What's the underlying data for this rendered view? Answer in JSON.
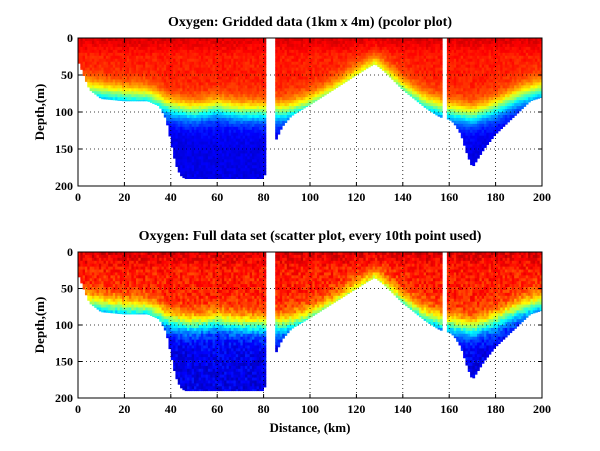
{
  "colors": {
    "colormap": [
      "#00008f",
      "#0000ff",
      "#0080ff",
      "#00ffff",
      "#80ff80",
      "#ffff00",
      "#ff8000",
      "#ff0000",
      "#800000"
    ],
    "background": "#ffffff",
    "axes": "#000000"
  },
  "chart_data": [
    {
      "type": "heatmap",
      "variant": "pcolor",
      "title": "Oxygen: Gridded data (1km x 4m) (pcolor plot)",
      "xlabel": "",
      "ylabel": "Depth,(m)",
      "xlim": [
        0,
        200
      ],
      "ylim": [
        200,
        0
      ],
      "y_reversed": true,
      "xticks": [
        0,
        20,
        40,
        60,
        80,
        100,
        120,
        140,
        160,
        180,
        200
      ],
      "yticks": [
        0,
        50,
        100,
        150,
        200
      ],
      "grid": "dotted",
      "bottom_depth": {
        "x": [
          0,
          3,
          5,
          10,
          20,
          30,
          35,
          38,
          40,
          42,
          44,
          46,
          50,
          60,
          70,
          80,
          85,
          88,
          92,
          100,
          110,
          120,
          125,
          128,
          132,
          140,
          150,
          155,
          157,
          160,
          162,
          165,
          168,
          170,
          172,
          175,
          180,
          185,
          190,
          195,
          200
        ],
        "depth": [
          30,
          55,
          70,
          82,
          85,
          85,
          92,
          110,
          140,
          170,
          185,
          190,
          190,
          190,
          190,
          190,
          140,
          120,
          105,
          90,
          70,
          50,
          40,
          35,
          45,
          70,
          95,
          105,
          108,
          110,
          115,
          130,
          160,
          175,
          165,
          150,
          130,
          115,
          100,
          85,
          80
        ]
      },
      "data_gaps_km": [
        [
          81,
          85
        ],
        [
          157,
          159
        ]
      ],
      "oxycline_depth": {
        "x": [
          0,
          20,
          30,
          40,
          50,
          60,
          70,
          80,
          90,
          100,
          110,
          120,
          128,
          140,
          150,
          160,
          170,
          180,
          190,
          200
        ],
        "depth": [
          70,
          78,
          80,
          95,
          100,
          95,
          100,
          100,
          100,
          90,
          75,
          55,
          40,
          70,
          90,
          100,
          105,
          95,
          80,
          70
        ]
      }
    },
    {
      "type": "heatmap",
      "variant": "scatter",
      "title": "Oxygen: Full data set (scatter plot, every 10th point used)",
      "xlabel": "Distance, (km)",
      "ylabel": "Depth,(m)",
      "xlim": [
        0,
        200
      ],
      "ylim": [
        200,
        0
      ],
      "y_reversed": true,
      "xticks": [
        0,
        20,
        40,
        60,
        80,
        100,
        120,
        140,
        160,
        180,
        200
      ],
      "yticks": [
        0,
        50,
        100,
        150,
        200
      ],
      "grid": "dotted",
      "bottom_depth": {
        "x": [
          0,
          3,
          5,
          10,
          20,
          30,
          35,
          38,
          40,
          42,
          44,
          46,
          50,
          60,
          70,
          80,
          85,
          88,
          92,
          100,
          110,
          120,
          125,
          128,
          132,
          140,
          150,
          155,
          157,
          160,
          162,
          165,
          168,
          170,
          172,
          175,
          180,
          185,
          190,
          195,
          200
        ],
        "depth": [
          30,
          55,
          70,
          82,
          85,
          85,
          92,
          110,
          140,
          170,
          185,
          190,
          190,
          190,
          190,
          190,
          140,
          120,
          105,
          90,
          70,
          50,
          40,
          35,
          45,
          70,
          95,
          105,
          108,
          110,
          115,
          130,
          160,
          175,
          165,
          150,
          130,
          115,
          100,
          85,
          80
        ]
      },
      "data_gaps_km": [
        [
          81,
          85
        ],
        [
          157,
          159
        ]
      ],
      "oxycline_depth": {
        "x": [
          0,
          20,
          30,
          40,
          50,
          60,
          70,
          80,
          90,
          100,
          110,
          120,
          128,
          140,
          150,
          160,
          170,
          180,
          190,
          200
        ],
        "depth": [
          70,
          78,
          80,
          95,
          100,
          95,
          100,
          100,
          100,
          90,
          75,
          55,
          40,
          70,
          90,
          100,
          105,
          95,
          80,
          70
        ]
      }
    }
  ]
}
